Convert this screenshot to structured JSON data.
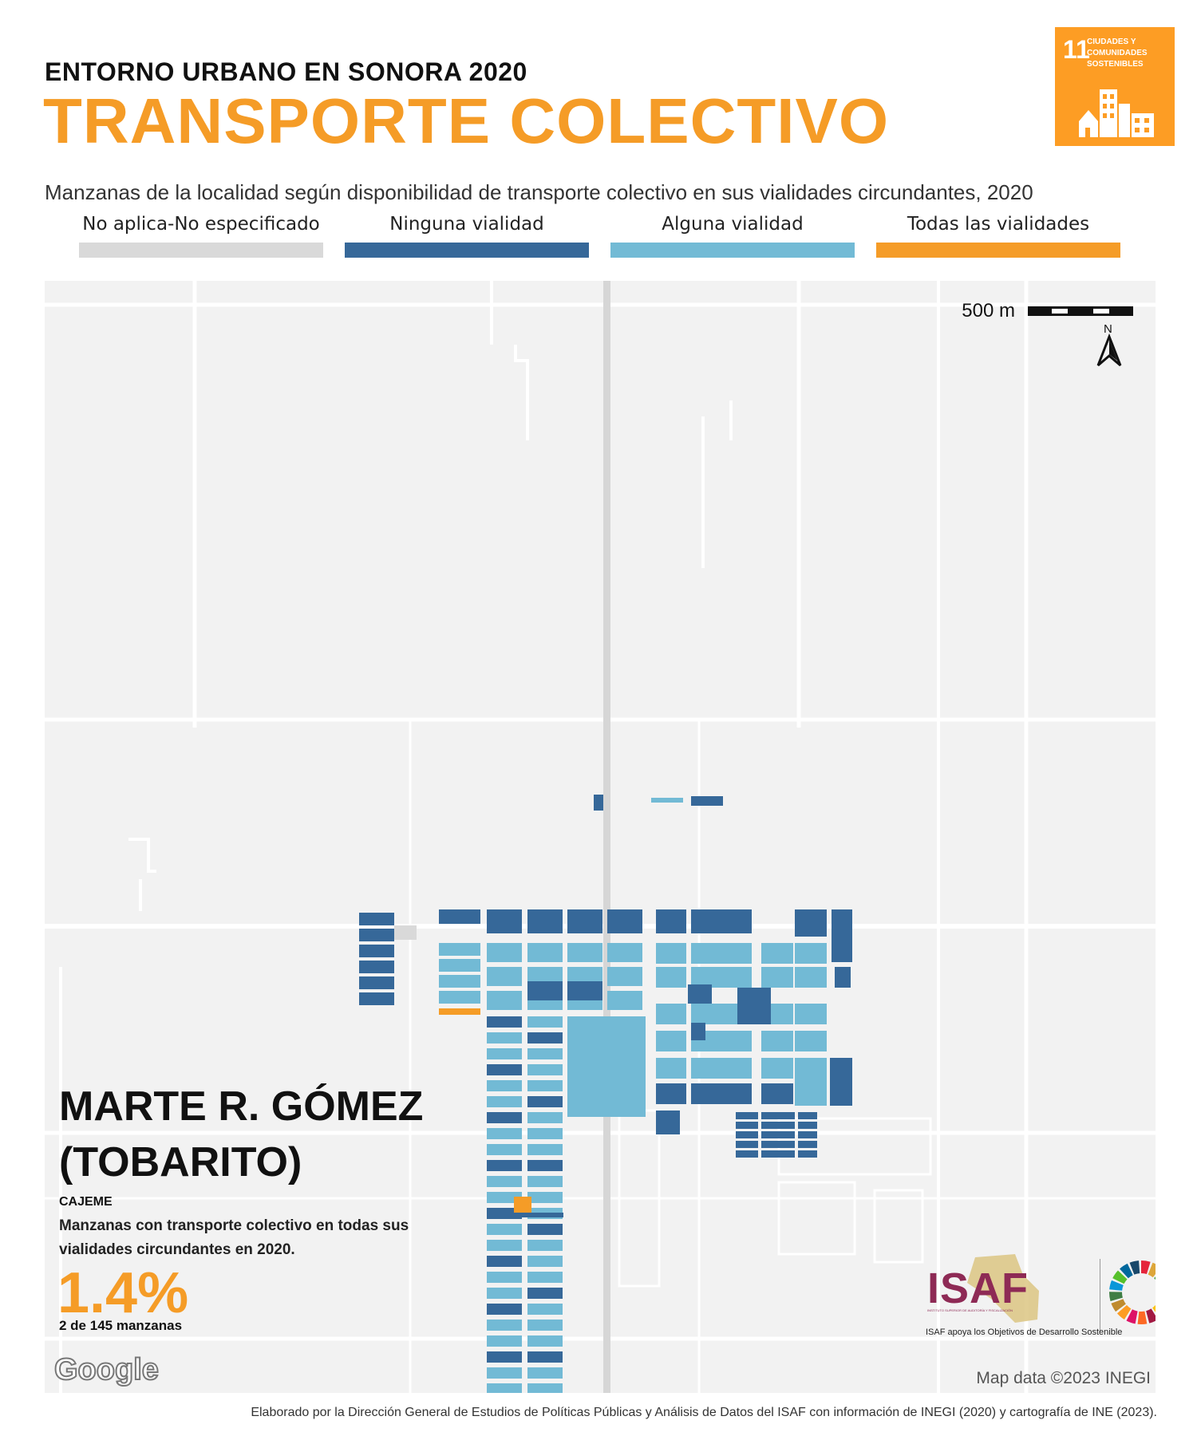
{
  "header": {
    "supertitle": "ENTORNO URBANO EN SONORA 2020",
    "title": "TRANSPORTE COLECTIVO",
    "subtitle": "Manzanas de la localidad según disponibilidad de  transporte colectivo en sus vialidades circundantes, 2020"
  },
  "sdg_badge": {
    "number": "11",
    "text": "CIUDADES Y COMUNIDADES SOSTENIBLES",
    "color": "#fd9d24",
    "icon": "city-buildings-icon"
  },
  "legend": [
    {
      "label": "No aplica-No especificado",
      "color": "#d9d9d9"
    },
    {
      "label": "Ninguna vialidad",
      "color": "#366899"
    },
    {
      "label": "Alguna vialidad",
      "color": "#72bad5"
    },
    {
      "label": "Todas las vialidades",
      "color": "#f59c27"
    }
  ],
  "map": {
    "scale_label": "500 m",
    "north_label": "N",
    "attribution": "Map data ©2023 INEGI",
    "google_logo": "Google"
  },
  "locality": {
    "name": "MARTE R. GÓMEZ (TOBARITO)",
    "municipality": "CAJEME",
    "stat_description": "Manzanas con transporte colectivo en todas sus vialidades circundantes en 2020.",
    "stat_value": "1.4%",
    "stat_count": "2 de 145 manzanas"
  },
  "isaf": {
    "logo": "ISAF",
    "subtext": "INSTITUTO SUPERIOR DE AUDITORÍA Y FISCALIZACIÓN",
    "tagline": "ISAF apoya los Objetivos de Desarrollo Sostenible"
  },
  "footer": "Elaborado por la Dirección General de Estudios de Políticas Públicas y Análisis de Datos del ISAF con información de INEGI (2020) y cartografía de INE (2023)."
}
